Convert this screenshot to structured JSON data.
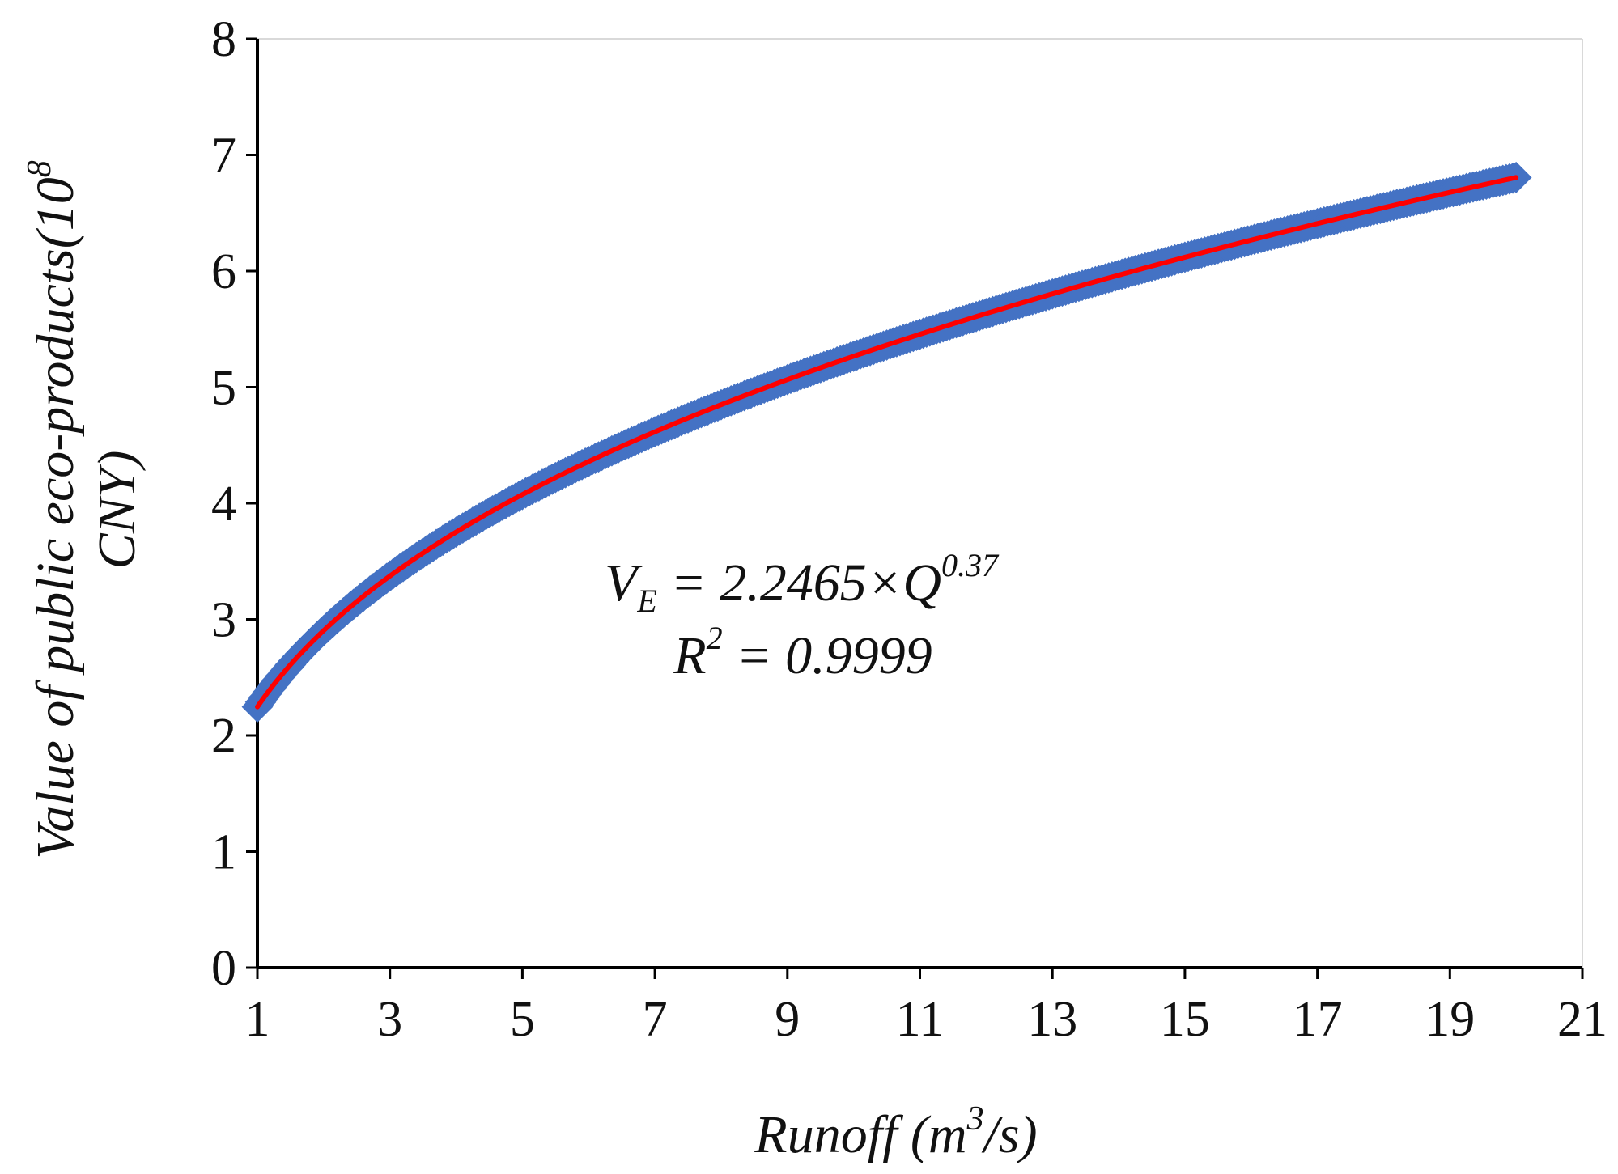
{
  "chart_data": {
    "type": "scatter",
    "xlabel": {
      "main": "Runoff (m",
      "sup": "3",
      "tail": "/s)"
    },
    "ylabel": {
      "line1_main": "Value of public eco-products(10",
      "line1_sup": "8",
      "line2": "CNY)"
    },
    "xlim": [
      1,
      21
    ],
    "ylim": [
      0,
      8
    ],
    "x_ticks": [
      1,
      3,
      5,
      7,
      9,
      11,
      13,
      15,
      17,
      19,
      21
    ],
    "y_ticks": [
      0,
      1,
      2,
      3,
      4,
      5,
      6,
      7,
      8
    ],
    "grid": false,
    "legend": "none",
    "model": {
      "a": 2.2465,
      "b": 0.37,
      "x_start": 1,
      "x_end": 20,
      "x_step": 0.05
    },
    "equation": {
      "lhs": "V",
      "lhs_sub": "E",
      "rhs": " = 2.2465×Q",
      "rhs_sup": "0.37",
      "r2_lhs": "R",
      "r2_sup": "2",
      "r2_rhs": " = 0.9999"
    },
    "series": [
      {
        "kind": "markers",
        "color": "#4472C4",
        "marker": "diamond"
      },
      {
        "kind": "trendline",
        "color": "#FF0000"
      }
    ]
  }
}
